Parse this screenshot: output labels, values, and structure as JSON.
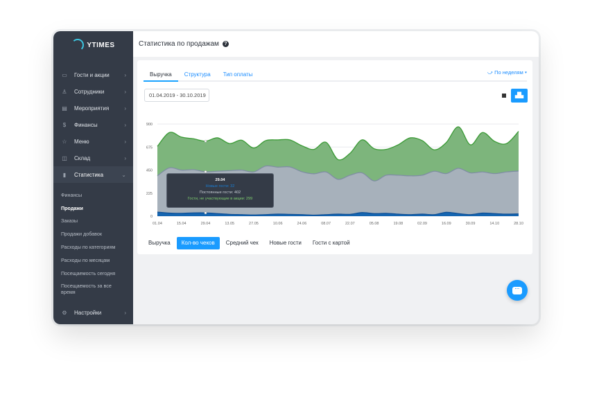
{
  "brand": "YTIMES",
  "sidebar": {
    "items": [
      {
        "label": "Гости и акции",
        "icon": "id-card-icon"
      },
      {
        "label": "Сотрудники",
        "icon": "user-icon"
      },
      {
        "label": "Мероприятия",
        "icon": "calendar-icon"
      },
      {
        "label": "Финансы",
        "icon": "dollar-icon"
      },
      {
        "label": "Меню",
        "icon": "star-icon"
      },
      {
        "label": "Склад",
        "icon": "box-icon"
      },
      {
        "label": "Статистика",
        "icon": "bar-chart-icon",
        "active": true
      }
    ],
    "sub": [
      "Финансы",
      "Продажи",
      "Заказы",
      "Продажи добавок",
      "Расходы по категориям",
      "Расходы по месяцам",
      "Посещаемость сегодня",
      "Посещаемость за все время"
    ],
    "settings": "Настройки"
  },
  "header": {
    "title": "Статистика по продажам"
  },
  "tabs": [
    "Выручка",
    "Структура",
    "Тип оплаты"
  ],
  "period": "По неделям",
  "date_range": "01.04.2019 - 30.10.2019",
  "metric_tabs": [
    "Выручка",
    "Кол-во чеков",
    "Средний чек",
    "Новые гости",
    "Гости с картой"
  ],
  "tooltip": {
    "date": "29.04",
    "lines": [
      "Новые гости: 32",
      "Постоянные гости: 402",
      "Гости, не участвующие в акции: 299"
    ]
  },
  "colors": {
    "accent": "#1a9bff",
    "sidebar": "#343b47",
    "new": "#1565b0",
    "regular": "#a7b1bb",
    "non_participants": "#7db57c"
  },
  "chart_data": {
    "type": "area",
    "stacked": true,
    "x": [
      "01.04",
      "08.04",
      "15.04",
      "22.04",
      "29.04",
      "06.05",
      "13.05",
      "20.05",
      "27.05",
      "03.06",
      "10.06",
      "17.06",
      "24.06",
      "01.07",
      "08.07",
      "15.07",
      "22.07",
      "29.07",
      "05.08",
      "12.08",
      "19.08",
      "26.08",
      "02.09",
      "09.09",
      "16.09",
      "23.09",
      "30.09",
      "07.10",
      "14.10",
      "21.10",
      "28.10"
    ],
    "xticks": [
      "01.04",
      "15.04",
      "29.04",
      "13.05",
      "27.05",
      "10.06",
      "24.06",
      "08.07",
      "22.07",
      "05.08",
      "19.08",
      "02.09",
      "16.09",
      "30.09",
      "14.10",
      "28.10"
    ],
    "yticks": [
      "0",
      "225",
      "450",
      "675",
      "900"
    ],
    "ylim": [
      0,
      900
    ],
    "grid": true,
    "series": [
      {
        "name": "Новые гости",
        "color": "#1565b0",
        "values": [
          40,
          30,
          28,
          32,
          32,
          25,
          18,
          15,
          12,
          15,
          20,
          18,
          15,
          10,
          15,
          20,
          18,
          35,
          25,
          28,
          20,
          15,
          20,
          15,
          38,
          25,
          15,
          30,
          25,
          20,
          22
        ]
      },
      {
        "name": "Постоянные гости",
        "color": "#a7b1bb",
        "values": [
          354,
          442,
          422,
          422,
          402,
          414,
          427,
          435,
          420,
          475,
          459,
          463,
          419,
          404,
          417,
          340,
          382,
          388,
          319,
          372,
          380,
          379,
          380,
          424,
          378,
          443,
          408,
          402,
          391,
          412,
          419
        ]
      },
      {
        "name": "Гости, не участвующие в акции",
        "color": "#7db57c",
        "values": [
          288,
          345,
          322,
          302,
          299,
          326,
          264,
          292,
          234,
          248,
          266,
          264,
          254,
          238,
          290,
          193,
          214,
          322,
          315,
          252,
          297,
          371,
          338,
          209,
          304,
          405,
          274,
          385,
          315,
          277,
          387
        ]
      }
    ]
  }
}
